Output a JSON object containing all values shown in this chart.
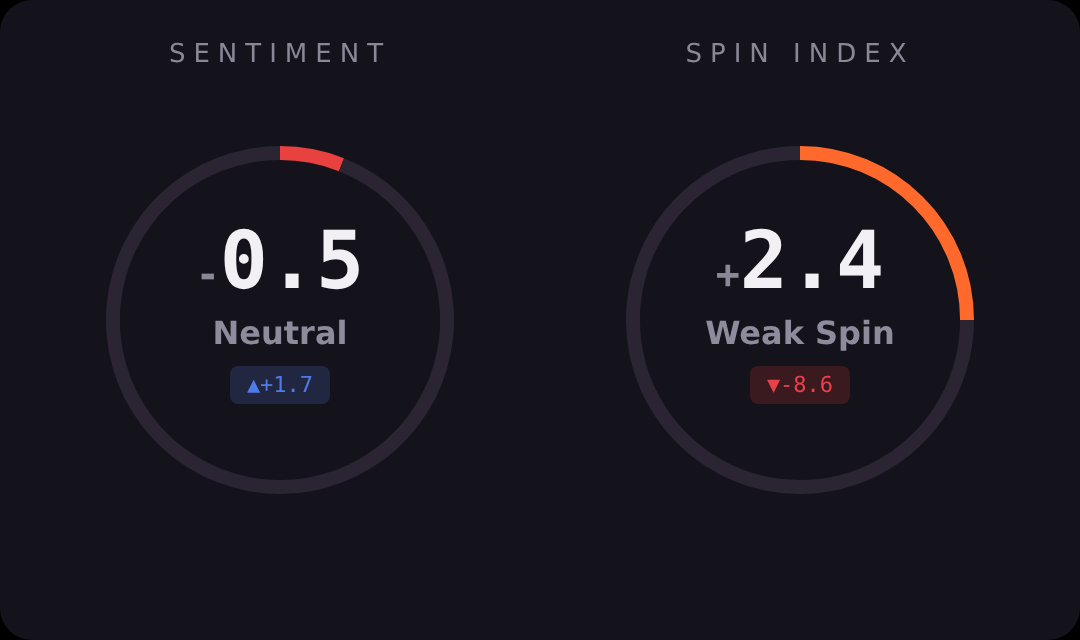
{
  "chart_data": [
    {
      "type": "donut",
      "title": "SENTIMENT",
      "categories": [
        null,
        null
      ],
      "values": [
        6,
        94
      ],
      "colors": [
        "#e8413f",
        "#2a2433"
      ],
      "annotations": [
        "-0.5",
        "Neutral",
        "▲+1.7"
      ]
    },
    {
      "type": "donut",
      "title": "SPIN INDEX",
      "categories": [
        null,
        null
      ],
      "values": [
        25,
        75
      ],
      "colors": [
        "#ff6a2c",
        "#2a2433"
      ],
      "annotations": [
        "+2.4",
        "Weak Spin",
        "▼-8.6"
      ]
    }
  ]
}
